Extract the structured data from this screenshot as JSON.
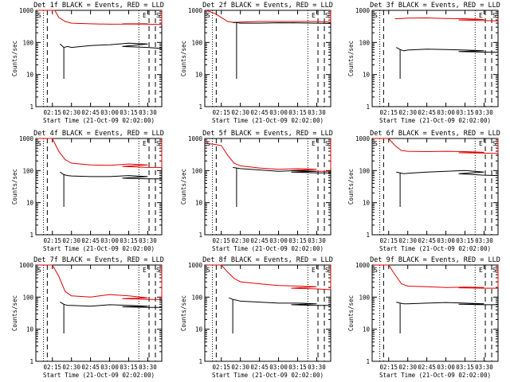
{
  "chart_data": [
    {
      "type": "line",
      "title": "Det 1f BLACK = Events, RED = LLD",
      "xlabel": "Start Time (21-Oct-09 02:02:00)",
      "ylabel": "Counts/sec",
      "yscale": "log",
      "ylim": [
        1,
        1000
      ],
      "xlim": [
        "02:02",
        "03:41"
      ],
      "x_ticks": [
        "02:15",
        "02:30",
        "02:45",
        "03:00",
        "03:15",
        "03:30"
      ],
      "y_ticks": [
        "1",
        "10",
        "100",
        "1000"
      ],
      "markers": [
        "S",
        "E",
        "S"
      ],
      "series": [
        {
          "name": "LLD",
          "color": "#e00000",
          "x": [
            2.03,
            2.17,
            2.2,
            2.25,
            2.3,
            2.45,
            2.6,
            2.75,
            2.9,
            3.1,
            3.3,
            3.5,
            3.58,
            3.62,
            3.66
          ],
          "y": [
            1100,
            1050,
            600,
            450,
            400,
            380,
            370,
            375,
            380,
            380,
            370,
            365,
            380,
            800,
            1200
          ]
        },
        {
          "name": "Events",
          "color": "#000000",
          "x": [
            2.21,
            2.24,
            2.27,
            2.3,
            2.45,
            2.6,
            2.75,
            2.9,
            3.1,
            3.3,
            3.5,
            3.56,
            3.6
          ],
          "y": [
            90,
            70,
            75,
            70,
            80,
            85,
            95,
            90,
            75,
            70,
            65,
            70,
            140
          ]
        }
      ]
    },
    {
      "type": "line",
      "title": "Det 2f BLACK = Events, RED = LLD",
      "xlabel": "Start Time (21-Oct-09 02:02:00)",
      "ylabel": "Counts/sec",
      "yscale": "log",
      "ylim": [
        1,
        1000
      ],
      "xlim": [
        "02:02",
        "03:41"
      ],
      "x_ticks": [
        "02:15",
        "02:30",
        "02:45",
        "03:00",
        "03:15",
        "03:30"
      ],
      "y_ticks": [
        "1",
        "10",
        "100",
        "1000"
      ],
      "markers": [
        "S",
        "E",
        "S"
      ],
      "series": [
        {
          "name": "LLD",
          "color": "#e00000",
          "x": [
            2.03,
            2.1,
            2.15,
            2.2,
            2.25,
            2.3,
            2.45,
            2.6,
            2.75,
            2.9,
            3.1,
            3.3,
            3.5,
            3.58,
            3.62,
            3.66
          ],
          "y": [
            1000,
            800,
            600,
            450,
            420,
            430,
            450,
            450,
            450,
            450,
            450,
            450,
            430,
            450,
            600,
            1000
          ]
        },
        {
          "name": "Events",
          "color": "#000000",
          "x": [
            2.24,
            2.27,
            2.3,
            2.45,
            2.6,
            2.75,
            2.9,
            3.1,
            3.3,
            3.5,
            3.56,
            3.6
          ],
          "y": [
            420,
            420,
            400,
            400,
            410,
            405,
            400,
            410,
            400,
            390,
            400,
            420
          ]
        }
      ]
    },
    {
      "type": "line",
      "title": "Det 3f BLACK = Events, RED = LLD",
      "xlabel": "Start Time (21-Oct-09 02:02:00)",
      "ylabel": "Counts/sec",
      "yscale": "log",
      "ylim": [
        1,
        1000
      ],
      "xlim": [
        "02:02",
        "03:41"
      ],
      "x_ticks": [
        "02:15",
        "02:30",
        "02:45",
        "03:00",
        "03:15",
        "03:30"
      ],
      "y_ticks": [
        "1",
        "10",
        "100",
        "1000"
      ],
      "markers": [
        "S",
        "E",
        "S"
      ],
      "series": [
        {
          "name": "LLD",
          "color": "#e00000",
          "x": [
            2.2,
            2.25,
            2.3,
            2.45,
            2.6,
            2.75,
            2.9,
            3.1,
            3.3,
            3.5,
            3.56,
            3.6
          ],
          "y": [
            550,
            560,
            570,
            580,
            560,
            550,
            520,
            500,
            480,
            470,
            480,
            550
          ]
        },
        {
          "name": "Events",
          "color": "#000000",
          "x": [
            2.21,
            2.24,
            2.27,
            2.3,
            2.45,
            2.6,
            2.75,
            2.9,
            3.1,
            3.3,
            3.5,
            3.56,
            3.6
          ],
          "y": [
            70,
            60,
            55,
            58,
            62,
            60,
            58,
            55,
            52,
            50,
            50,
            52,
            70
          ]
        }
      ]
    },
    {
      "type": "line",
      "title": "Det 4f BLACK = Events, RED = LLD",
      "xlabel": "Start Time (21-Oct-09 02:02:00)",
      "ylabel": "Counts/sec",
      "yscale": "log",
      "ylim": [
        1,
        1000
      ],
      "xlim": [
        "02:02",
        "03:41"
      ],
      "x_ticks": [
        "02:15",
        "02:30",
        "02:45",
        "03:00",
        "03:15",
        "03:30"
      ],
      "y_ticks": [
        "1",
        "10",
        "100",
        "1000"
      ],
      "markers": [
        "S",
        "E",
        "S"
      ],
      "series": [
        {
          "name": "LLD",
          "color": "#e00000",
          "x": [
            2.03,
            2.15,
            2.2,
            2.25,
            2.3,
            2.45,
            2.6,
            2.75,
            2.9,
            3.1,
            3.3,
            3.5,
            3.58,
            3.62,
            3.66
          ],
          "y": [
            1100,
            1050,
            400,
            220,
            170,
            150,
            145,
            160,
            150,
            135,
            125,
            125,
            130,
            300,
            1100
          ]
        },
        {
          "name": "Events",
          "color": "#000000",
          "x": [
            2.21,
            2.24,
            2.27,
            2.3,
            2.45,
            2.6,
            2.75,
            2.9,
            3.1,
            3.3,
            3.5,
            3.56,
            3.6
          ],
          "y": [
            90,
            75,
            70,
            68,
            65,
            65,
            70,
            65,
            58,
            55,
            55,
            58,
            90
          ]
        }
      ]
    },
    {
      "type": "line",
      "title": "Det 5f BLACK = Events, RED = LLD",
      "xlabel": "Start Time (21-Oct-09 02:02:00)",
      "ylabel": "Counts/sec",
      "yscale": "log",
      "ylim": [
        1,
        1000
      ],
      "xlim": [
        "02:02",
        "03:41"
      ],
      "x_ticks": [
        "02:15",
        "02:30",
        "02:45",
        "03:00",
        "03:15",
        "03:30"
      ],
      "y_ticks": [
        "1",
        "10",
        "100",
        "1000"
      ],
      "markers": [
        "S",
        "E",
        "S"
      ],
      "series": [
        {
          "name": "LLD",
          "color": "#e00000",
          "x": [
            2.03,
            2.1,
            2.15,
            2.2,
            2.25,
            2.3,
            2.45,
            2.6,
            2.75,
            2.9,
            3.1,
            3.3,
            3.5,
            3.58,
            3.62,
            3.66
          ],
          "y": [
            700,
            650,
            600,
            300,
            170,
            140,
            120,
            110,
            115,
            110,
            100,
            95,
            95,
            100,
            300,
            1000
          ]
        },
        {
          "name": "Events",
          "color": "#000000",
          "x": [
            2.24,
            2.27,
            2.3,
            2.45,
            2.6,
            2.75,
            2.9,
            3.1,
            3.3,
            3.5,
            3.56,
            3.6
          ],
          "y": [
            125,
            120,
            115,
            105,
            95,
            100,
            95,
            90,
            85,
            85,
            88,
            110
          ]
        }
      ]
    },
    {
      "type": "line",
      "title": "Det 6f BLACK = Events, RED = LLD",
      "xlabel": "Start Time (21-Oct-09 02:02:00)",
      "ylabel": "Counts/sec",
      "yscale": "log",
      "ylim": [
        1,
        1000
      ],
      "xlim": [
        "02:02",
        "03:41"
      ],
      "x_ticks": [
        "02:15",
        "02:30",
        "02:45",
        "03:00",
        "03:15",
        "03:30"
      ],
      "y_ticks": [
        "1",
        "10",
        "100",
        "1000"
      ],
      "markers": [
        "S",
        "E",
        "S"
      ],
      "series": [
        {
          "name": "LLD",
          "color": "#e00000",
          "x": [
            2.03,
            2.15,
            2.2,
            2.25,
            2.3,
            2.45,
            2.6,
            2.75,
            2.9,
            3.1,
            3.3,
            3.5,
            3.58,
            3.62,
            3.66
          ],
          "y": [
            1100,
            1050,
            600,
            420,
            400,
            390,
            400,
            390,
            370,
            360,
            350,
            340,
            345,
            500,
            1100
          ]
        },
        {
          "name": "Events",
          "color": "#000000",
          "x": [
            2.21,
            2.24,
            2.27,
            2.3,
            2.45,
            2.6,
            2.75,
            2.9,
            3.1,
            3.3,
            3.5,
            3.56,
            3.6
          ],
          "y": [
            90,
            85,
            80,
            82,
            90,
            95,
            100,
            90,
            80,
            72,
            70,
            72,
            100
          ]
        }
      ]
    },
    {
      "type": "line",
      "title": "Det 7f BLACK = Events, RED = LLD",
      "xlabel": "Start Time (21-Oct-09 02:02:00)",
      "ylabel": "Counts/sec",
      "yscale": "log",
      "ylim": [
        1,
        1000
      ],
      "xlim": [
        "02:02",
        "03:41"
      ],
      "x_ticks": [
        "02:15",
        "02:30",
        "02:45",
        "03:00",
        "03:15",
        "03:30"
      ],
      "y_ticks": [
        "1",
        "10",
        "100",
        "1000"
      ],
      "markers": [
        "S",
        "E",
        "S"
      ],
      "series": [
        {
          "name": "LLD",
          "color": "#e00000",
          "x": [
            2.03,
            2.15,
            2.2,
            2.25,
            2.3,
            2.45,
            2.6,
            2.75,
            2.9,
            3.1,
            3.3,
            3.5,
            3.58,
            3.62,
            3.66
          ],
          "y": [
            1100,
            1050,
            450,
            150,
            110,
            100,
            120,
            110,
            95,
            90,
            85,
            85,
            90,
            300,
            1100
          ]
        },
        {
          "name": "Events",
          "color": "#000000",
          "x": [
            2.21,
            2.24,
            2.27,
            2.3,
            2.45,
            2.6,
            2.75,
            2.9,
            3.1,
            3.3,
            3.5,
            3.56,
            3.6
          ],
          "y": [
            70,
            60,
            55,
            55,
            52,
            58,
            55,
            52,
            50,
            48,
            48,
            50,
            70
          ]
        }
      ]
    },
    {
      "type": "line",
      "title": "Det 8f BLACK = Events, RED = LLD",
      "xlabel": "Start Time (21-Oct-09 02:02:00)",
      "ylabel": "Counts/sec",
      "yscale": "log",
      "ylim": [
        1,
        1000
      ],
      "xlim": [
        "02:02",
        "03:41"
      ],
      "x_ticks": [
        "02:15",
        "02:30",
        "02:45",
        "03:00",
        "03:15",
        "03:30"
      ],
      "y_ticks": [
        "1",
        "10",
        "100",
        "1000"
      ],
      "markers": [
        "S",
        "E",
        "S"
      ],
      "series": [
        {
          "name": "LLD",
          "color": "#e00000",
          "x": [
            2.03,
            2.15,
            2.2,
            2.25,
            2.3,
            2.45,
            2.6,
            2.75,
            2.9,
            3.1,
            3.3,
            3.5,
            3.58,
            3.62,
            3.66
          ],
          "y": [
            1100,
            1050,
            600,
            380,
            300,
            260,
            230,
            220,
            210,
            190,
            180,
            170,
            175,
            400,
            1100
          ]
        },
        {
          "name": "Events",
          "color": "#000000",
          "x": [
            2.21,
            2.24,
            2.27,
            2.3,
            2.45,
            2.6,
            2.75,
            2.9,
            3.1,
            3.3,
            3.5,
            3.56,
            3.6
          ],
          "y": [
            95,
            85,
            80,
            75,
            70,
            65,
            65,
            62,
            58,
            55,
            55,
            58,
            80
          ]
        }
      ]
    },
    {
      "type": "line",
      "title": "Det 9f BLACK = Events, RED = LLD",
      "xlabel": "Start Time (21-Oct-09 02:02:00)",
      "ylabel": "Counts/sec",
      "yscale": "log",
      "ylim": [
        1,
        1000
      ],
      "xlim": [
        "02:02",
        "03:41"
      ],
      "x_ticks": [
        "02:15",
        "02:30",
        "02:45",
        "03:00",
        "03:15",
        "03:30"
      ],
      "y_ticks": [
        "1",
        "10",
        "100",
        "1000"
      ],
      "markers": [
        "S",
        "E",
        "S"
      ],
      "series": [
        {
          "name": "LLD",
          "color": "#e00000",
          "x": [
            2.03,
            2.15,
            2.2,
            2.25,
            2.3,
            2.45,
            2.6,
            2.75,
            2.9,
            3.1,
            3.3,
            3.5,
            3.58,
            3.62,
            3.66
          ],
          "y": [
            1100,
            1050,
            500,
            260,
            220,
            210,
            200,
            205,
            200,
            195,
            190,
            190,
            195,
            400,
            1100
          ]
        },
        {
          "name": "Events",
          "color": "#000000",
          "x": [
            2.21,
            2.24,
            2.27,
            2.3,
            2.45,
            2.6,
            2.75,
            2.9,
            3.1,
            3.3,
            3.5,
            3.56,
            3.6
          ],
          "y": [
            70,
            65,
            62,
            62,
            65,
            68,
            65,
            62,
            60,
            58,
            58,
            60,
            80
          ]
        }
      ]
    }
  ]
}
